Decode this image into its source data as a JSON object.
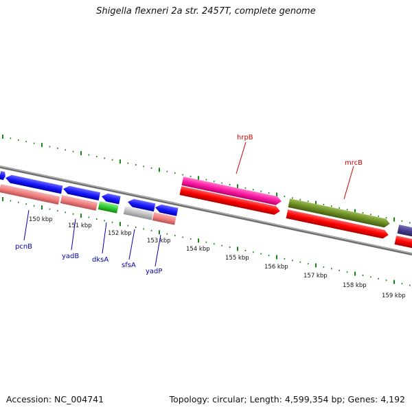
{
  "title": "Shigella flexneri 2a str. 2457T, complete genome",
  "footer": {
    "accession": "Accession: NC_004741",
    "summary": "Topology: circular; Length: 4,599,354 bp; Genes: 4,192"
  },
  "scale_labels": [
    "150 kbp",
    "151 kbp",
    "152 kbp",
    "153 kbp",
    "154 kbp",
    "155 kbp",
    "156 kbp",
    "157 kbp",
    "158 kbp",
    "159 kbp"
  ],
  "gene_labels": {
    "pcnB": "pcnB",
    "yadB": "yadB",
    "dksA": "dksA",
    "sfsA": "sfsA",
    "yadP": "yadP",
    "hrpB": "hrpB",
    "mrcB": "mrcB"
  },
  "colors": {
    "blue_gene": "#1a1aff",
    "salmon": "#f08080",
    "green": "#33cc33",
    "grey": "#c0c0c0",
    "magenta": "#ff1aa3",
    "red": "#ff0000",
    "olive": "#6b8e23",
    "purple": "#483d8b",
    "ticks": "#118811",
    "label_blue": "#0000aa",
    "label_red": "#cc0000",
    "backbone": "#888888"
  }
}
